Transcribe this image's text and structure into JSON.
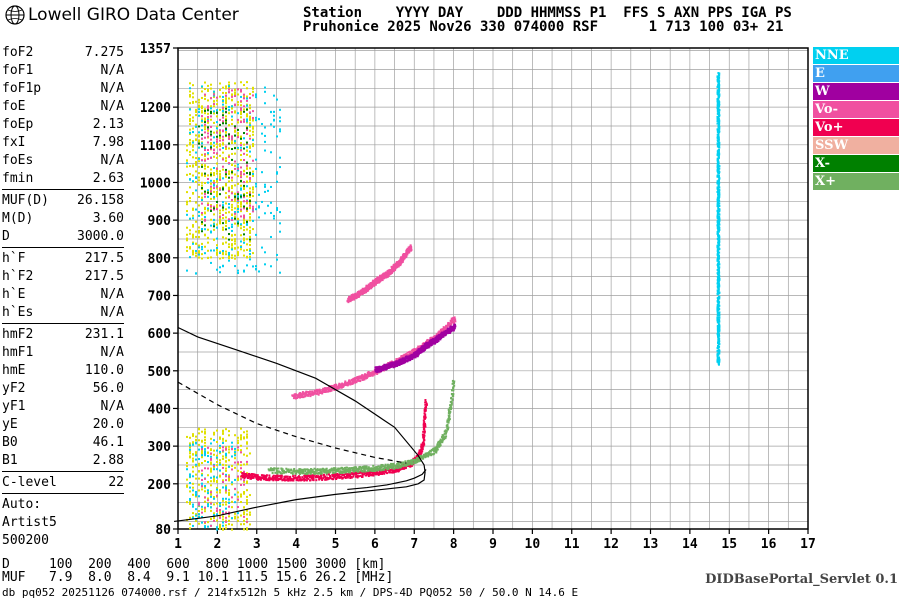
{
  "header": {
    "logo_text": "Lowell GIRO Data Center",
    "station_line1": "Station    YYYY DAY    DDD HHMMSS P1  FFS S AXN PPS IGA PS",
    "station_line2": "Pruhonice 2025 Nov26 330 074000 RSF      1 713 100 03+ 21"
  },
  "params": {
    "group1": [
      {
        "name": "foF2",
        "value": "7.275"
      },
      {
        "name": "foF1",
        "value": "N/A"
      },
      {
        "name": "foF1p",
        "value": "N/A"
      },
      {
        "name": "foE",
        "value": "N/A"
      },
      {
        "name": "foEp",
        "value": "2.13"
      },
      {
        "name": "fxI",
        "value": "7.98"
      },
      {
        "name": "foEs",
        "value": "N/A"
      },
      {
        "name": "fmin",
        "value": "2.63"
      }
    ],
    "group2": [
      {
        "name": "MUF(D)",
        "value": "26.158"
      },
      {
        "name": "M(D)",
        "value": "3.60"
      },
      {
        "name": "D",
        "value": "3000.0"
      }
    ],
    "group3": [
      {
        "name": "h`F",
        "value": "217.5"
      },
      {
        "name": "h`F2",
        "value": "217.5"
      },
      {
        "name": "h`E",
        "value": "N/A"
      },
      {
        "name": "h`Es",
        "value": "N/A"
      }
    ],
    "group4": [
      {
        "name": "hmF2",
        "value": "231.1"
      },
      {
        "name": "hmF1",
        "value": "N/A"
      },
      {
        "name": "hmE",
        "value": "110.0"
      },
      {
        "name": "yF2",
        "value": "56.0"
      },
      {
        "name": "yF1",
        "value": "N/A"
      },
      {
        "name": "yE",
        "value": "20.0"
      },
      {
        "name": "B0",
        "value": "46.1"
      },
      {
        "name": "B1",
        "value": "2.88"
      }
    ],
    "group5": [
      {
        "name": "C-level",
        "value": "22"
      }
    ],
    "auto": [
      "Auto:",
      "Artist5",
      "500200"
    ]
  },
  "legend": [
    {
      "label": "NNE",
      "color": "#00d0f0"
    },
    {
      "label": "E",
      "color": "#40a0f0"
    },
    {
      "label": "W",
      "color": "#a000a0"
    },
    {
      "label": "Vo-",
      "color": "#f050a0"
    },
    {
      "label": "Vo+",
      "color": "#f00050"
    },
    {
      "label": "SSW",
      "color": "#f0b0a0"
    },
    {
      "label": "X-",
      "color": "#008000"
    },
    {
      "label": "X+",
      "color": "#70b060"
    }
  ],
  "dmuf": {
    "d_line": "D     100  200  400  600  800 1000 1500 3000 [km]",
    "muf_line": "MUF   7.9  8.0  8.4  9.1 10.1 11.5 15.6 26.2 [MHz]"
  },
  "servlet": "DIDBasePortal_Servlet 0.1",
  "footer": "db pq052 20251126 074000.rsf / 214fx512h 5 kHz 2.5 km / DPS-4D PQ052 50 / 50.0 N 14.6 E",
  "chart_data": {
    "type": "scatter",
    "xlim": [
      1,
      17
    ],
    "ylim": [
      80,
      1357
    ],
    "x_ticks": [
      1,
      2,
      3,
      4,
      5,
      6,
      7,
      8,
      9,
      10,
      11,
      12,
      13,
      14,
      15,
      16,
      17
    ],
    "y_ticks": [
      80,
      200,
      300,
      400,
      500,
      600,
      700,
      800,
      900,
      1000,
      1100,
      1200,
      1357
    ],
    "grid": true,
    "x_tick_labels": [
      "1",
      "2",
      "3",
      "4",
      "5",
      "6",
      "7",
      "8",
      "9",
      "10",
      "11",
      "12",
      "13",
      "14",
      "15",
      "16",
      "17"
    ],
    "y_tick_labels": [
      "80",
      "200",
      "300",
      "400",
      "500",
      "600",
      "700",
      "800",
      "900",
      "1000",
      "1100",
      "1200",
      "1357"
    ],
    "legend_position": "right",
    "clusters": [
      {
        "color": "#e0e000",
        "x": [
          1.2,
          2.9
        ],
        "y": [
          800,
          1270
        ],
        "count": 700
      },
      {
        "color": "#00d0f0",
        "x": [
          1.2,
          3.6
        ],
        "y": [
          760,
          1260
        ],
        "count": 260
      },
      {
        "color": "#f050a0",
        "x": [
          1.6,
          2.9
        ],
        "y": [
          900,
          1250
        ],
        "count": 180
      },
      {
        "color": "#008000",
        "x": [
          1.5,
          2.8
        ],
        "y": [
          850,
          1200
        ],
        "count": 90
      },
      {
        "color": "#e0e000",
        "x": [
          1.2,
          2.8
        ],
        "y": [
          80,
          350
        ],
        "count": 340
      },
      {
        "color": "#00d0f0",
        "x": [
          1.2,
          2.5
        ],
        "y": [
          80,
          320
        ],
        "count": 120
      },
      {
        "color": "#f050a0",
        "x": [
          1.5,
          2.7
        ],
        "y": [
          90,
          300
        ],
        "count": 70
      }
    ],
    "traces": [
      {
        "name": "F2 O-trace",
        "color": "#f00050",
        "x": [
          2.6,
          3.0,
          3.5,
          4.0,
          4.5,
          5.0,
          5.5,
          6.0,
          6.5,
          6.9,
          7.1,
          7.2,
          7.275
        ],
        "y": [
          225,
          220,
          218,
          217.5,
          219,
          222,
          226,
          232,
          240,
          255,
          275,
          310,
          420
        ]
      },
      {
        "name": "F2 X-trace",
        "color": "#70b060",
        "x": [
          3.3,
          4.0,
          4.5,
          5.0,
          5.5,
          6.0,
          6.5,
          7.0,
          7.5,
          7.8,
          7.98
        ],
        "y": [
          238,
          235,
          236,
          238,
          240,
          244,
          250,
          262,
          290,
          340,
          470
        ]
      },
      {
        "name": "2F O-trace",
        "color": "#f050a0",
        "x": [
          3.9,
          4.5,
          5.0,
          5.5,
          6.0,
          6.5,
          7.0,
          7.5,
          8.0
        ],
        "y": [
          435,
          445,
          460,
          478,
          500,
          525,
          555,
          590,
          640
        ]
      },
      {
        "name": "2F W-trace",
        "color": "#a000a0",
        "x": [
          6.0,
          6.5,
          7.0,
          7.3,
          7.6,
          8.0
        ],
        "y": [
          505,
          520,
          545,
          570,
          590,
          620
        ]
      },
      {
        "name": "3F trace",
        "color": "#f050a0",
        "x": [
          5.3,
          5.7,
          6.0,
          6.3,
          6.6,
          6.9
        ],
        "y": [
          690,
          715,
          740,
          760,
          790,
          830
        ]
      },
      {
        "name": "Es band",
        "color": "#00d0f0",
        "x": [
          14.7,
          14.7
        ],
        "y": [
          520,
          1290
        ]
      }
    ],
    "profile_solid": {
      "x": [
        0.9,
        1.5,
        2.0,
        3.0,
        4.0,
        5.0,
        6.0,
        6.8,
        7.1,
        7.25,
        7.275,
        7.25,
        7.1,
        6.5,
        5.5,
        4.5,
        3.5,
        2.5,
        1.5,
        1.0
      ],
      "y": [
        100,
        108,
        115,
        138,
        158,
        172,
        183,
        192,
        200,
        210,
        231,
        250,
        275,
        350,
        420,
        480,
        520,
        555,
        590,
        615
      ]
    },
    "profile_dashed": {
      "x": [
        1.0,
        2.0,
        3.0,
        4.0,
        5.0,
        6.0,
        6.8
      ],
      "y": [
        470,
        410,
        360,
        325,
        295,
        270,
        255
      ]
    },
    "muf_curve": {
      "x": [
        5.3,
        5.8,
        6.3,
        6.8,
        7.0,
        7.2,
        7.3
      ],
      "y": [
        185,
        190,
        197,
        208,
        215,
        225,
        238
      ]
    }
  }
}
